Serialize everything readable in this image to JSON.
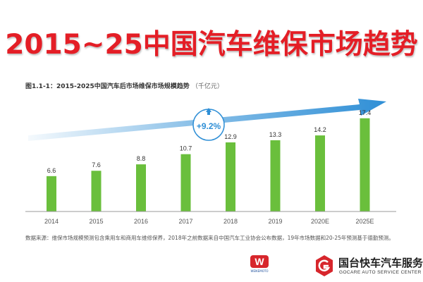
{
  "headline": "2015~25中国汽车维保市场趋势",
  "figure": {
    "title": "图1.1-1：2015-2025中国汽车后市场维保市场规模趋势",
    "unit": "（千亿元）"
  },
  "growth_label": "+9.2%",
  "footnote": "数据来源：维保市场规模预测包含乘用车和商用车维修保养，2018年之前数据来自中国汽车工业协会公布数据，19年市场数据和20-25年预测基于德勤预测。",
  "logos": {
    "left_brand_letter": "W",
    "left_brand_tag": "WEIKEMOTO",
    "right_brand_cn": "国台快车汽车服务",
    "right_brand_en": "GOCARE AUTO SERVICE CENTER"
  },
  "colors": {
    "headline": "#e41e26",
    "bar": "#6abf3c",
    "arrow": "#2f8fd6",
    "axis": "#999999"
  },
  "chart_data": {
    "type": "bar",
    "title": "图1.1-1：2015-2025中国汽车后市场维保市场规模趋势",
    "ylabel": "千亿元",
    "xlabel": "",
    "categories": [
      "2014",
      "2015",
      "2016",
      "2017",
      "2018",
      "2019",
      "2020E",
      "2025E"
    ],
    "values": [
      6.6,
      7.6,
      8.8,
      10.7,
      12.9,
      13.3,
      14.2,
      17.4
    ],
    "value_labels": [
      "6.6",
      "7.6",
      "8.8",
      "10.7",
      "12.9",
      "13.3",
      "14.2",
      "17.4"
    ],
    "ylim": [
      0,
      18
    ],
    "grid": false,
    "annotations": [
      {
        "text": "+9.2%",
        "type": "growth-arrow"
      }
    ]
  }
}
